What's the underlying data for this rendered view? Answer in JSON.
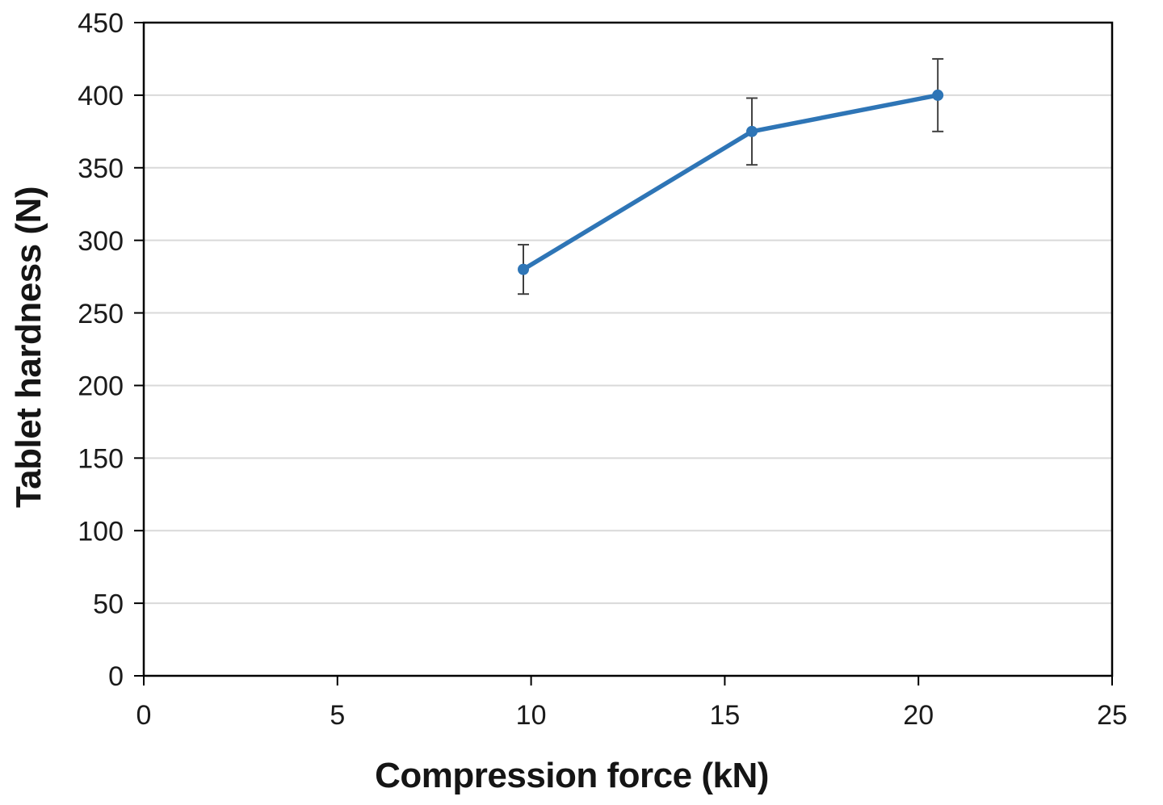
{
  "chart_data": {
    "type": "line",
    "title": "",
    "xlabel": "Compression force (kN)",
    "ylabel": "Tablet hardness (N)",
    "x": [
      9.8,
      15.7,
      20.5
    ],
    "y": [
      280,
      375,
      400
    ],
    "y_error": [
      17,
      23,
      25
    ],
    "xlim": [
      0,
      25
    ],
    "ylim": [
      0,
      450
    ],
    "x_ticks": [
      0,
      5,
      10,
      15,
      20,
      25
    ],
    "y_ticks": [
      0,
      50,
      100,
      150,
      200,
      250,
      300,
      350,
      400,
      450
    ],
    "grid": "horizontal-only",
    "legend": "none",
    "line_color": "#2E75B6",
    "marker_color": "#2E75B6",
    "error_bar_color": "#404040",
    "gridline_color": "#D9D9D9",
    "axis_color": "#000000",
    "background_color": "#FFFFFF"
  }
}
